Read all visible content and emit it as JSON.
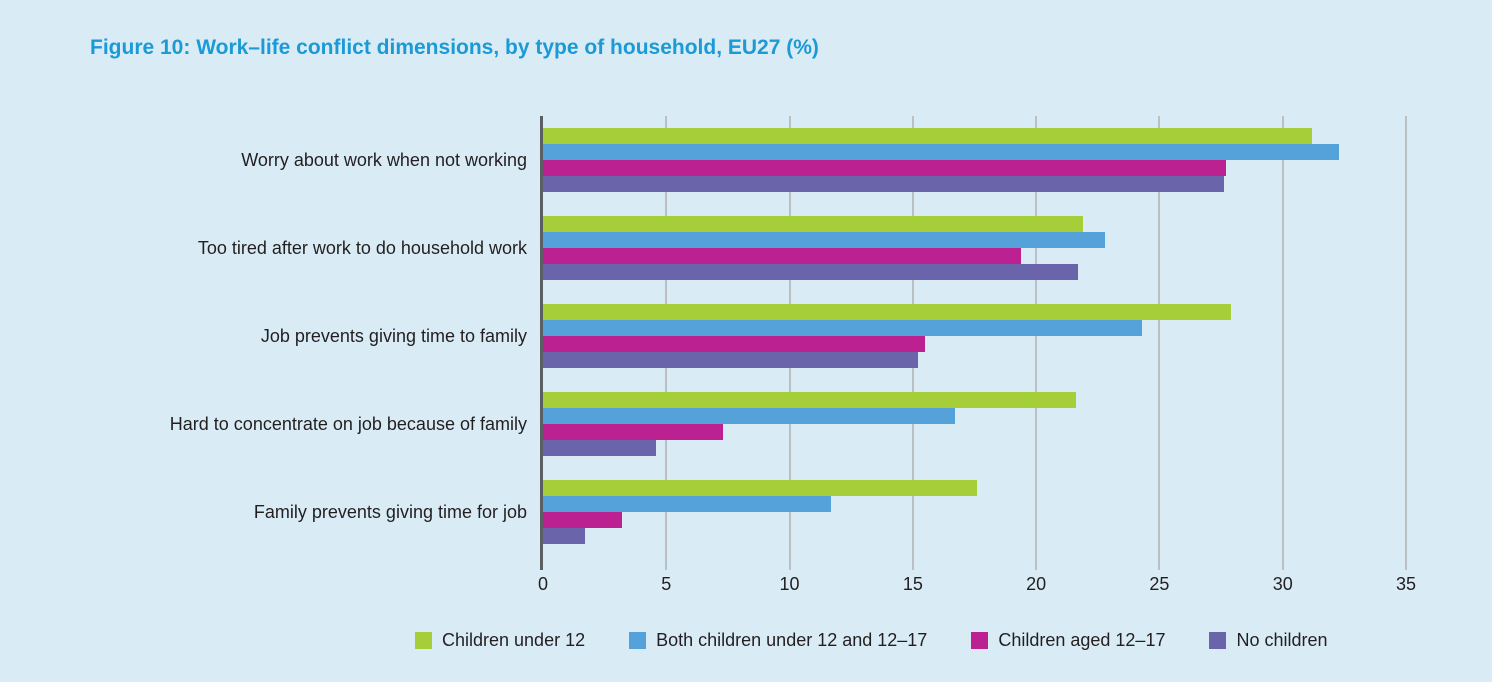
{
  "title": "Figure 10: Work–life conflict dimensions, by type of household, EU27 (%)",
  "colors": {
    "background": "#d9ecf5",
    "title": "#1b9ad6",
    "axis_line": "#595f62",
    "gridline": "#bdc0c2",
    "text": "#231f20"
  },
  "chart_data": {
    "type": "bar",
    "orientation": "horizontal",
    "title": "Figure 10: Work–life conflict dimensions, by type of household, EU27 (%)",
    "xlabel": "",
    "ylabel": "",
    "xlim": [
      0,
      35
    ],
    "xticks": [
      0,
      5,
      10,
      15,
      20,
      25,
      30,
      35
    ],
    "grid": "vertical",
    "legend_position": "bottom",
    "categories": [
      "Worry about work when not working",
      "Too tired after work to do household work",
      "Job prevents giving time to family",
      "Hard to concentrate on job because of family",
      "Family prevents giving time for job"
    ],
    "series": [
      {
        "name": "Children under 12",
        "color": "#a5ce39",
        "values": [
          31.2,
          21.9,
          27.9,
          21.6,
          17.6
        ]
      },
      {
        "name": "Both children under 12 and 12–17",
        "color": "#55a1d9",
        "values": [
          32.3,
          22.8,
          24.3,
          16.7,
          11.7
        ]
      },
      {
        "name": "Children aged 12–17",
        "color": "#bb2190",
        "values": [
          27.7,
          19.4,
          15.5,
          7.3,
          3.2
        ]
      },
      {
        "name": "No children",
        "color": "#6a65ab",
        "values": [
          27.6,
          21.7,
          15.2,
          4.6,
          1.7
        ]
      }
    ]
  }
}
